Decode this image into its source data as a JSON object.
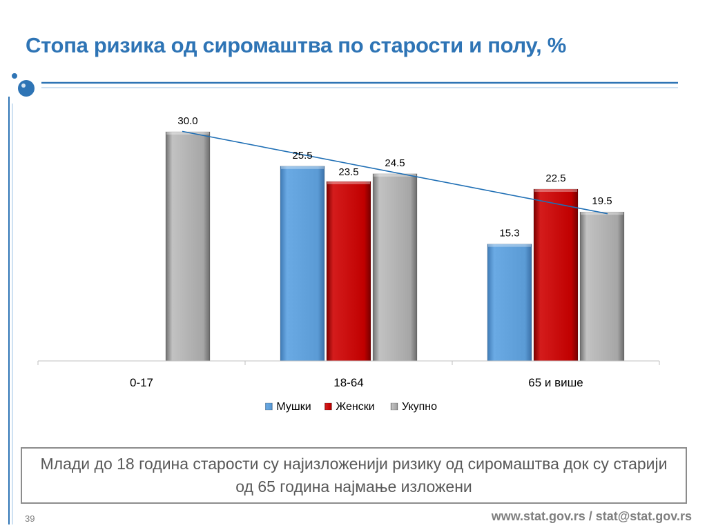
{
  "slide": {
    "title": "Стопа ризика од сиромаштва по старости и полу, %",
    "callout": "Млади до 18 година старости су најизложенији ризику од сиромаштва док су старији од 65 година најмање изложени",
    "page_number": "39",
    "footer_link": "www.stat.gov.rs / stat@stat.gov.rs"
  },
  "colors": {
    "title": "#2e74b5",
    "accent_line": "#2e74b5",
    "series_male": "#5b9bd5",
    "series_female": "#c00000",
    "series_total": "#a6a6a6",
    "trendline": "#1f6fb5"
  },
  "chart_data": {
    "type": "bar",
    "categories": [
      "0-17",
      "18-64",
      "65 и више"
    ],
    "series": [
      {
        "name": "Мушки",
        "values": [
          null,
          25.5,
          15.3
        ]
      },
      {
        "name": "Женски",
        "values": [
          null,
          23.5,
          22.5
        ]
      },
      {
        "name": "Укупно",
        "values": [
          30.0,
          24.5,
          19.5
        ]
      }
    ],
    "data_labels": true,
    "trendline": {
      "series": "Укупно",
      "type": "linear"
    },
    "ylim": [
      0,
      30
    ],
    "y_axis_visible": false,
    "grid": false,
    "legend": {
      "position": "bottom",
      "entries": [
        "Мушки",
        "Женски",
        "Укупно"
      ]
    },
    "title": "",
    "xlabel": "",
    "ylabel": ""
  }
}
